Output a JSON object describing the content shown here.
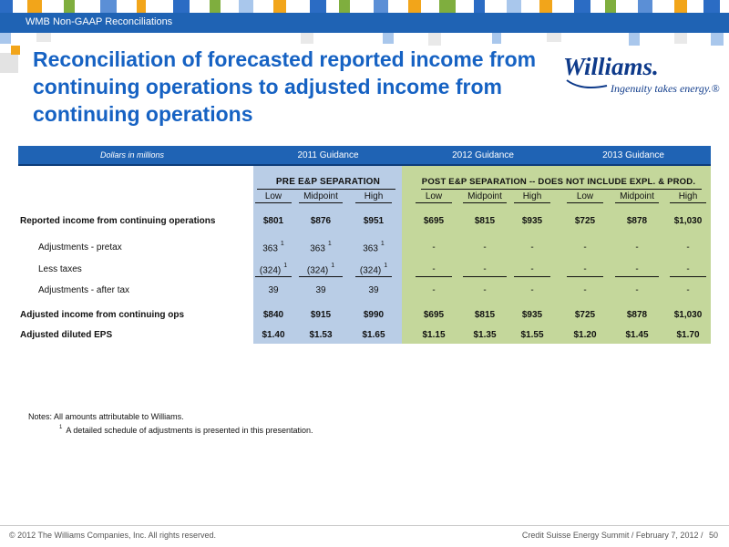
{
  "header": {
    "section_label": "WMB Non-GAAP Reconciliations",
    "title": "Reconciliation of forecasted reported income from continuing operations to adjusted income from continuing operations",
    "logo_word": "Williams.",
    "logo_tagline": "Ingenuity takes energy.®"
  },
  "colors": {
    "brand_blue": "#1f63b4",
    "pre_panel": "#b9cde6",
    "post_panel": "#c4d79b"
  },
  "table": {
    "units_label": "Dollars in millions",
    "year_headers": [
      "2011 Guidance",
      "2012 Guidance",
      "2013 Guidance"
    ],
    "pre_label": "PRE E&P SEPARATION",
    "post_label": "POST E&P SEPARATION -- DOES NOT INCLUDE EXPL. & PROD.",
    "col_heads": [
      "Low",
      "Midpoint",
      "High",
      "Low",
      "Midpoint",
      "High",
      "Low",
      "Midpoint",
      "High"
    ],
    "rows": [
      {
        "label": "Reported income from continuing operations",
        "values": [
          "$801",
          "$876",
          "$951",
          "$695",
          "$815",
          "$935",
          "$725",
          "$878",
          "$1,030"
        ]
      },
      {
        "label": "Adjustments - pretax",
        "values": [
          "363",
          "363",
          "363",
          "-",
          "-",
          "-",
          "-",
          "-",
          "-"
        ]
      },
      {
        "label": "Less taxes",
        "values": [
          "(324)",
          "(324)",
          "(324)",
          "-",
          "-",
          "-",
          "-",
          "-",
          "-"
        ]
      },
      {
        "label": "Adjustments - after tax",
        "values": [
          "39",
          "39",
          "39",
          "-",
          "-",
          "-",
          "-",
          "-",
          "-"
        ]
      },
      {
        "label": "Adjusted income from continuing ops",
        "values": [
          "$840",
          "$915",
          "$990",
          "$695",
          "$815",
          "$935",
          "$725",
          "$878",
          "$1,030"
        ]
      },
      {
        "label": "Adjusted diluted EPS",
        "values": [
          "$1.40",
          "$1.53",
          "$1.65",
          "$1.15",
          "$1.35",
          "$1.55",
          "$1.20",
          "$1.45",
          "$1.70"
        ]
      }
    ],
    "footnote_marker": "1"
  },
  "notes": {
    "label": "Notes:",
    "text": "All amounts attributable to Williams.",
    "footnote_marker": "1",
    "footnote": "A detailed schedule of adjustments is presented in this presentation."
  },
  "footer": {
    "copyright": "© 2012 The Williams Companies, Inc. All rights reserved.",
    "event": "Credit Suisse Energy Summit / February 7, 2012 /",
    "page": "50"
  }
}
